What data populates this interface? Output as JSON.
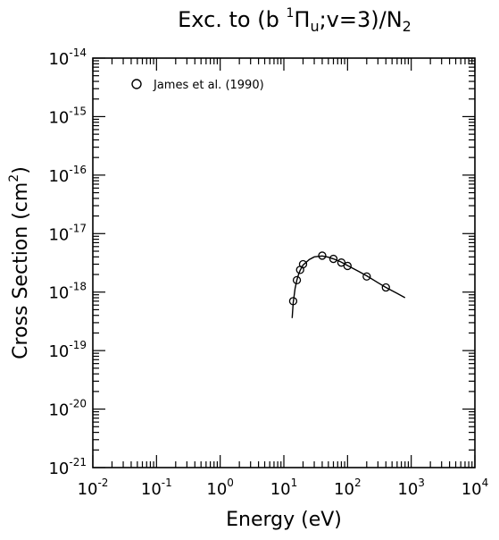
{
  "chart_data": {
    "type": "scatter",
    "title_main": "Exc. to (b ",
    "title_sup": "1",
    "title_pi": "Π",
    "title_u": "u",
    "title_mid": ";v=3)/N",
    "title_2": "2",
    "xlabel": "Energy (eV)",
    "ylabel_main": "Cross Section (cm",
    "ylabel_sup": "2",
    "ylabel_end": ")",
    "x_scale": "log",
    "y_scale": "log",
    "xlim": [
      0.01,
      10000
    ],
    "ylim": [
      1e-21,
      1e-14
    ],
    "x_tick_exponents": [
      "-2",
      "-1",
      "0",
      "1",
      "2",
      "3",
      "4"
    ],
    "y_tick_exponents": [
      "-14",
      "-15",
      "-16",
      "-17",
      "-18",
      "-19",
      "-20",
      "-21"
    ],
    "tick_base": "10",
    "grid": false,
    "legend_position": "top-left",
    "series": [
      {
        "name": "James et al. (1990)",
        "marker": "open-circle",
        "x": [
          14,
          16,
          18,
          20,
          40,
          60,
          80,
          100,
          200,
          400
        ],
        "y": [
          7e-19,
          1.6e-18,
          2.4e-18,
          3e-18,
          4.2e-18,
          3.7e-18,
          3.2e-18,
          2.8e-18,
          1.85e-18,
          1.2e-18
        ]
      },
      {
        "name": "",
        "marker": "line",
        "x": [
          13.5,
          14,
          15,
          16,
          17,
          18,
          20,
          25,
          30,
          40,
          50,
          60,
          80,
          100,
          150,
          200,
          300,
          400,
          600,
          800
        ],
        "y": [
          3.6e-19,
          6.5e-19,
          1.15e-18,
          1.6e-18,
          2e-18,
          2.35e-18,
          2.9e-18,
          3.6e-18,
          4e-18,
          4.15e-18,
          3.95e-18,
          3.7e-18,
          3.25e-18,
          2.85e-18,
          2.25e-18,
          1.9e-18,
          1.45e-18,
          1.2e-18,
          9.5e-19,
          8e-19
        ]
      }
    ]
  }
}
